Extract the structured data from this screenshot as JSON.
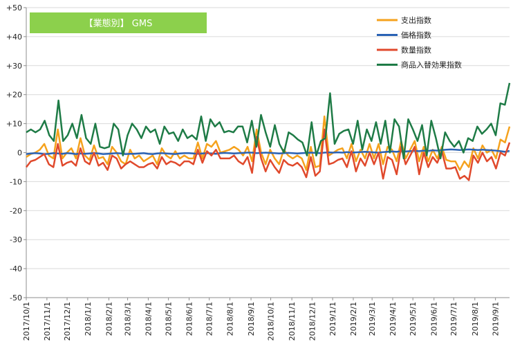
{
  "chart_data": {
    "type": "line",
    "title": "【業態別】 GMS",
    "title_box_color": "#8cd04c",
    "ylim": [
      -50,
      50
    ],
    "ytick_labels": [
      "+50",
      "+40",
      "+30",
      "+20",
      "+10",
      "0",
      "-10",
      "-20",
      "-30",
      "-40",
      "-50"
    ],
    "ytick_values": [
      50,
      40,
      30,
      20,
      10,
      0,
      -10,
      -20,
      -30,
      -40,
      -50
    ],
    "xtick_labels": [
      "2017/10/1",
      "2017/11/1",
      "2017/12/1",
      "2018/1/1",
      "2018/2/1",
      "2018/3/1",
      "2018/4/1",
      "2018/5/1",
      "2018/6/1",
      "2018/7/1",
      "2018/8/1",
      "2018/9/1",
      "2018/10/1",
      "2018/11/1",
      "2018/12/1",
      "2019/1/1",
      "2019/2/1",
      "2019/3/1",
      "2019/4/1",
      "2019/5/1",
      "2019/6/1",
      "2019/7/1",
      "2019/8/1",
      "2019/9/1"
    ],
    "xtick_weeks": [
      0,
      4.4,
      8.7,
      13.1,
      17.6,
      21.6,
      26.0,
      30.3,
      34.7,
      39.0,
      43.4,
      47.9,
      52.1,
      56.6,
      60.9,
      65.3,
      69.7,
      73.7,
      78.1,
      82.4,
      86.9,
      91.1,
      95.6,
      100.0
    ],
    "x_weeks_total": 103,
    "grid": "horizontal",
    "legend_position": "top-right",
    "series": [
      {
        "name": "支出指数",
        "color": "#f5a21d",
        "values": [
          -1.5,
          -0.5,
          0,
          1,
          3,
          -1,
          -2,
          8,
          -2,
          0,
          1.5,
          -2,
          5,
          -1,
          -2.5,
          2.5,
          -2,
          -1.5,
          -4,
          2,
          0,
          -3,
          -4,
          1,
          -2,
          -1,
          -3,
          -2,
          -1,
          -4,
          1.5,
          -1,
          -2,
          0.5,
          -2,
          -1,
          -2,
          -2,
          3.5,
          -2,
          3,
          2,
          4,
          0,
          0.5,
          1,
          2,
          1,
          -1,
          2,
          -3,
          8,
          0,
          -4,
          1,
          -2,
          -4,
          1,
          -1,
          -2,
          -1,
          -2,
          -6,
          2,
          -5,
          -4.5,
          12.5,
          -1,
          0,
          1,
          1.5,
          -2,
          3,
          -3,
          1,
          -2,
          3,
          -2,
          3,
          -4,
          2,
          1,
          -3,
          4,
          -2,
          1,
          4,
          -3,
          2,
          -3,
          1,
          -2,
          2,
          -2.5,
          -3,
          -3,
          -6,
          -3,
          -5,
          1.5,
          -2,
          2.5,
          0,
          1,
          -2,
          4.5,
          3.5,
          9
        ]
      },
      {
        "name": "価格指数",
        "color": "#2a62b4",
        "values": [
          -0.5,
          -0.3,
          -0.2,
          -0.3,
          -0.5,
          -0.4,
          -0.2,
          -0.3,
          -0.4,
          -0.2,
          -0.3,
          -0.5,
          -0.3,
          -0.4,
          -0.3,
          -0.2,
          -0.3,
          -0.5,
          -0.4,
          -0.3,
          -0.2,
          -0.3,
          -0.5,
          -0.4,
          -0.4,
          -0.3,
          -0.2,
          -0.4,
          -0.5,
          -0.3,
          -0.2,
          -0.3,
          -0.4,
          -0.5,
          -0.3,
          -0.2,
          -0.2,
          -0.3,
          -0.4,
          -0.3,
          -0.2,
          -0.3,
          -0.4,
          -0.2,
          -0.1,
          -0.2,
          -0.3,
          -0.2,
          -0.1,
          0,
          0,
          -0.2,
          -0.1,
          0,
          -0.1,
          -0.2,
          -0.3,
          -0.2,
          -0.1,
          -0.2,
          -0.3,
          -0.2,
          -0.1,
          0,
          -0.1,
          -0.2,
          0,
          0.1,
          0,
          0.1,
          0,
          0.2,
          0,
          0.1,
          0.2,
          0.3,
          0.2,
          0.1,
          0,
          0.2,
          0.3,
          0.4,
          0.3,
          0.5,
          0.4,
          0.5,
          0.6,
          0.5,
          0.7,
          0.6,
          0.8,
          0.7,
          0.9,
          1,
          1.1,
          1,
          0.9,
          1,
          1.1,
          1,
          0.9,
          1,
          0.9,
          0.8,
          0.7,
          0.5,
          0.3,
          0.6
        ]
      },
      {
        "name": "数量指数",
        "color": "#e0492c",
        "values": [
          -5,
          -3,
          -2.5,
          -1.5,
          -0.5,
          -4,
          -5,
          3,
          -4.5,
          -3.5,
          -3,
          -4.5,
          1.5,
          -3,
          -4,
          0,
          -4.5,
          -3.5,
          -6,
          -1,
          -2,
          -5.5,
          -4,
          -3,
          -4,
          -5,
          -5,
          -4,
          -3.5,
          -5.5,
          -1.5,
          -4,
          -3,
          -3.5,
          -4.5,
          -3,
          -3,
          -4,
          1,
          -3.5,
          0.5,
          -1,
          1,
          -2,
          -2,
          -2,
          -1,
          -3,
          -4,
          -1.5,
          -7,
          5.5,
          -2,
          -6.5,
          -2.5,
          -5,
          -7,
          -2.5,
          -4,
          -4.5,
          -3.5,
          -5,
          -8.5,
          -1.5,
          -8,
          -6.5,
          8,
          -4,
          -3.5,
          -2.5,
          -2,
          -5,
          0.5,
          -6.5,
          -2,
          -4.5,
          0,
          -4,
          0,
          -9,
          -1.5,
          -2.5,
          -7.5,
          2,
          -4,
          -1,
          2,
          -7.5,
          0,
          -5,
          -1.5,
          -3.5,
          0.5,
          -5.5,
          -5.5,
          -5,
          -9,
          -8,
          -9.5,
          -1,
          -3.5,
          0,
          -3,
          -1.5,
          -5.5,
          0,
          -1,
          3.5
        ]
      },
      {
        "name": "商品入替効果指数",
        "color": "#1e7b46",
        "values": [
          7,
          8,
          7,
          8,
          11,
          6,
          4,
          18,
          4,
          6,
          10,
          5,
          13,
          5,
          3,
          10,
          2,
          1.5,
          2,
          10,
          8,
          -1,
          6,
          10,
          8,
          5,
          9,
          7,
          8,
          3,
          9,
          6.5,
          7,
          4,
          8,
          5,
          6,
          4.5,
          12.5,
          4,
          11.5,
          9,
          10.5,
          7,
          7.5,
          7,
          9,
          9,
          3.5,
          11,
          2,
          13,
          7,
          2,
          9.5,
          3,
          0,
          7,
          6,
          4.5,
          3.5,
          -1,
          10.5,
          -1,
          4,
          5,
          20.5,
          3,
          6.5,
          7.5,
          8,
          3,
          11,
          1,
          8,
          4,
          10.5,
          3,
          11,
          0,
          11.5,
          9,
          -2,
          11.5,
          8,
          4,
          9.5,
          -1,
          11,
          5,
          -2,
          7,
          4,
          2,
          4,
          0,
          5,
          4,
          9,
          6.5,
          8,
          10,
          6,
          17,
          16.5,
          24
        ]
      }
    ]
  }
}
